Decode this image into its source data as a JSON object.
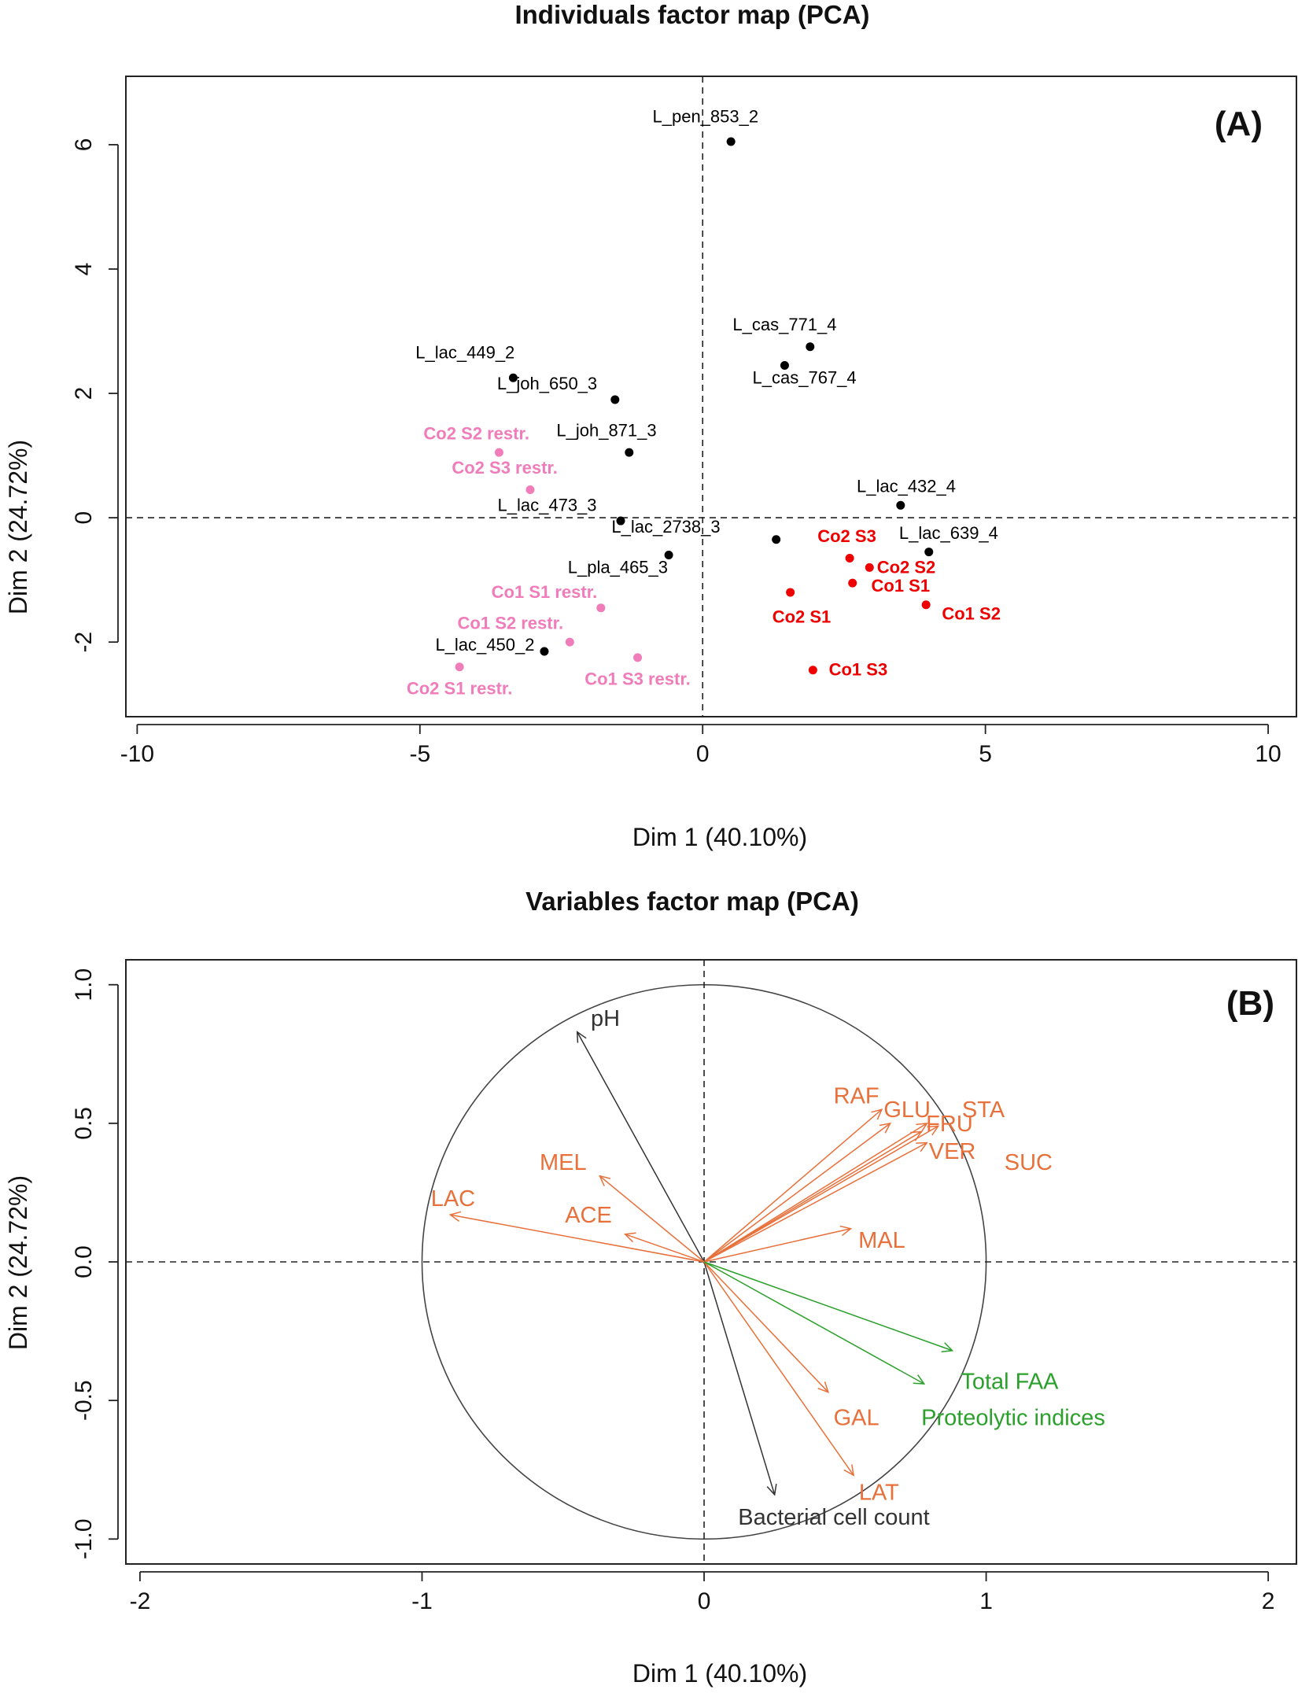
{
  "chart_data": [
    {
      "type": "scatter",
      "title": "Individuals factor map (PCA)",
      "panel_label": "(A)",
      "xlabel": "Dim 1 (40.10%)",
      "ylabel": "Dim 2 (24.72%)",
      "xlim": [
        -10.2,
        10.5
      ],
      "ylim": [
        -3.2,
        7.1
      ],
      "xticks": [
        -10,
        -5,
        0,
        5,
        10
      ],
      "xtick_labels": [
        "-10",
        "-5",
        "0",
        "5",
        "10"
      ],
      "yticks": [
        -2,
        0,
        2,
        4,
        6
      ],
      "ytick_labels": [
        "-2",
        "0",
        "2",
        "4",
        "6"
      ],
      "colors": {
        "strain": "#000000",
        "control": "#ee0000",
        "restricted": "#f07cba"
      },
      "points": [
        {
          "label": "L_pen_853_2",
          "x": 0.5,
          "y": 6.05,
          "group": "strain",
          "lx": 0.05,
          "ly": 6.45
        },
        {
          "label": "L_cas_771_4",
          "x": 1.9,
          "y": 2.75,
          "group": "strain",
          "lx": 1.45,
          "ly": 3.1
        },
        {
          "label": "L_cas_767_4",
          "x": 1.45,
          "y": 2.45,
          "group": "strain",
          "lx": 1.8,
          "ly": 2.25
        },
        {
          "label": "L_lac_449_2",
          "x": -3.35,
          "y": 2.25,
          "group": "strain",
          "lx": -4.2,
          "ly": 2.65
        },
        {
          "label": "L_joh_650_3",
          "x": -1.55,
          "y": 1.9,
          "group": "strain",
          "lx": -2.75,
          "ly": 2.15
        },
        {
          "label": "L_joh_871_3",
          "x": -1.3,
          "y": 1.05,
          "group": "strain",
          "lx": -1.7,
          "ly": 1.4
        },
        {
          "label": "L_lac_473_3",
          "x": -1.45,
          "y": -0.05,
          "group": "strain",
          "lx": -2.75,
          "ly": 0.2
        },
        {
          "label": "L_lac_432_4",
          "x": 3.5,
          "y": 0.2,
          "group": "strain",
          "lx": 3.6,
          "ly": 0.5
        },
        {
          "label": "L_lac_639_4",
          "x": 4.0,
          "y": -0.55,
          "group": "strain",
          "lx": 4.35,
          "ly": -0.25
        },
        {
          "label": "L_lac_2738_3",
          "x": 1.3,
          "y": -0.35,
          "group": "strain",
          "lx": -0.65,
          "ly": -0.15
        },
        {
          "label": "L_pla_465_3",
          "x": -0.6,
          "y": -0.6,
          "group": "strain",
          "lx": -1.5,
          "ly": -0.8
        },
        {
          "label": "L_lac_450_2",
          "x": -2.8,
          "y": -2.15,
          "group": "strain",
          "lx": -3.85,
          "ly": -2.05
        },
        {
          "label": "Co2 S3",
          "x": 2.6,
          "y": -0.65,
          "group": "control",
          "lx": 2.55,
          "ly": -0.3
        },
        {
          "label": "Co2 S2",
          "x": 2.95,
          "y": -0.8,
          "group": "control",
          "lx": 3.6,
          "ly": -0.8
        },
        {
          "label": "Co1 S1",
          "x": 2.65,
          "y": -1.05,
          "group": "control",
          "lx": 3.5,
          "ly": -1.1
        },
        {
          "label": "Co2 S1",
          "x": 1.55,
          "y": -1.2,
          "group": "control",
          "lx": 1.75,
          "ly": -1.6
        },
        {
          "label": "Co1 S2",
          "x": 3.95,
          "y": -1.4,
          "group": "control",
          "lx": 4.75,
          "ly": -1.55
        },
        {
          "label": "Co1 S3",
          "x": 1.95,
          "y": -2.45,
          "group": "control",
          "lx": 2.75,
          "ly": -2.45
        },
        {
          "label": "Co2 S2 restr.",
          "x": -3.6,
          "y": 1.05,
          "group": "restricted",
          "lx": -4.0,
          "ly": 1.35
        },
        {
          "label": "Co2 S3 restr.",
          "x": -3.05,
          "y": 0.45,
          "group": "restricted",
          "lx": -3.5,
          "ly": 0.8
        },
        {
          "label": "Co1 S1 restr.",
          "x": -1.8,
          "y": -1.45,
          "group": "restricted",
          "lx": -2.8,
          "ly": -1.2
        },
        {
          "label": "Co1 S2 restr.",
          "x": -2.35,
          "y": -2.0,
          "group": "restricted",
          "lx": -3.4,
          "ly": -1.7
        },
        {
          "label": "Co1 S3 restr.",
          "x": -1.15,
          "y": -2.25,
          "group": "restricted",
          "lx": -1.15,
          "ly": -2.6
        },
        {
          "label": "Co2 S1 restr.",
          "x": -4.3,
          "y": -2.4,
          "group": "restricted",
          "lx": -4.3,
          "ly": -2.75
        }
      ]
    },
    {
      "type": "vector",
      "title": "Variables factor map (PCA)",
      "panel_label": "(B)",
      "xlabel": "Dim 1 (40.10%)",
      "ylabel": "Dim 2 (24.72%)",
      "xlim": [
        -2.05,
        2.1
      ],
      "ylim": [
        -1.09,
        1.09
      ],
      "xticks": [
        -2,
        -1,
        0,
        1,
        2
      ],
      "xtick_labels": [
        "-2",
        "-1",
        "0",
        "1",
        "2"
      ],
      "yticks": [
        -1.0,
        -0.5,
        0.0,
        0.5,
        1.0
      ],
      "ytick_labels": [
        "-1.0",
        "-0.5",
        "0.0",
        "0.5",
        "1.0"
      ],
      "circle_radius": 1,
      "colors": {
        "black": "#333333",
        "orange": "#e8703a",
        "green": "#2ca02c"
      },
      "arrows": [
        {
          "label": "pH",
          "x": -0.45,
          "y": 0.83,
          "color": "black",
          "lx": -0.35,
          "ly": 0.88,
          "anchor": "middle"
        },
        {
          "label": "Bacterial cell count",
          "x": 0.25,
          "y": -0.84,
          "color": "black",
          "lx": 0.46,
          "ly": -0.92,
          "anchor": "middle"
        },
        {
          "label": "LAC",
          "x": -0.9,
          "y": 0.17,
          "color": "orange",
          "lx": -0.89,
          "ly": 0.23,
          "anchor": "middle"
        },
        {
          "label": "MEL",
          "x": -0.37,
          "y": 0.31,
          "color": "orange",
          "lx": -0.5,
          "ly": 0.36,
          "anchor": "middle"
        },
        {
          "label": "ACE",
          "x": -0.28,
          "y": 0.1,
          "color": "orange",
          "lx": -0.41,
          "ly": 0.17,
          "anchor": "middle"
        },
        {
          "label": "RAF",
          "x": 0.63,
          "y": 0.55,
          "color": "orange",
          "lx": 0.54,
          "ly": 0.6,
          "anchor": "middle"
        },
        {
          "label": "GLU",
          "x": 0.66,
          "y": 0.5,
          "color": "orange",
          "lx": 0.72,
          "ly": 0.55,
          "anchor": "middle"
        },
        {
          "label": "STA",
          "x": 0.79,
          "y": 0.5,
          "color": "orange",
          "lx": 0.99,
          "ly": 0.55,
          "anchor": "middle"
        },
        {
          "label": "FRU",
          "x": 0.77,
          "y": 0.47,
          "color": "orange",
          "lx": 0.87,
          "ly": 0.5,
          "anchor": "middle"
        },
        {
          "label": "VER",
          "x": 0.79,
          "y": 0.43,
          "color": "orange",
          "lx": 0.88,
          "ly": 0.4,
          "anchor": "middle"
        },
        {
          "label": "SUC",
          "x": 0.83,
          "y": 0.49,
          "color": "orange",
          "lx": 1.15,
          "ly": 0.36,
          "anchor": "middle"
        },
        {
          "label": "MAL",
          "x": 0.52,
          "y": 0.12,
          "color": "orange",
          "lx": 0.63,
          "ly": 0.08,
          "anchor": "middle"
        },
        {
          "label": "GAL",
          "x": 0.44,
          "y": -0.47,
          "color": "orange",
          "lx": 0.54,
          "ly": -0.56,
          "anchor": "middle"
        },
        {
          "label": "LAT",
          "x": 0.53,
          "y": -0.77,
          "color": "orange",
          "lx": 0.62,
          "ly": -0.83,
          "anchor": "middle"
        },
        {
          "label": "Total FAA",
          "x": 0.88,
          "y": -0.32,
          "color": "green",
          "lx": 0.91,
          "ly": -0.43,
          "anchor": "start"
        },
        {
          "label": "Proteolytic indices",
          "x": 0.78,
          "y": -0.44,
          "color": "green",
          "lx": 0.77,
          "ly": -0.56,
          "anchor": "start"
        }
      ]
    }
  ]
}
